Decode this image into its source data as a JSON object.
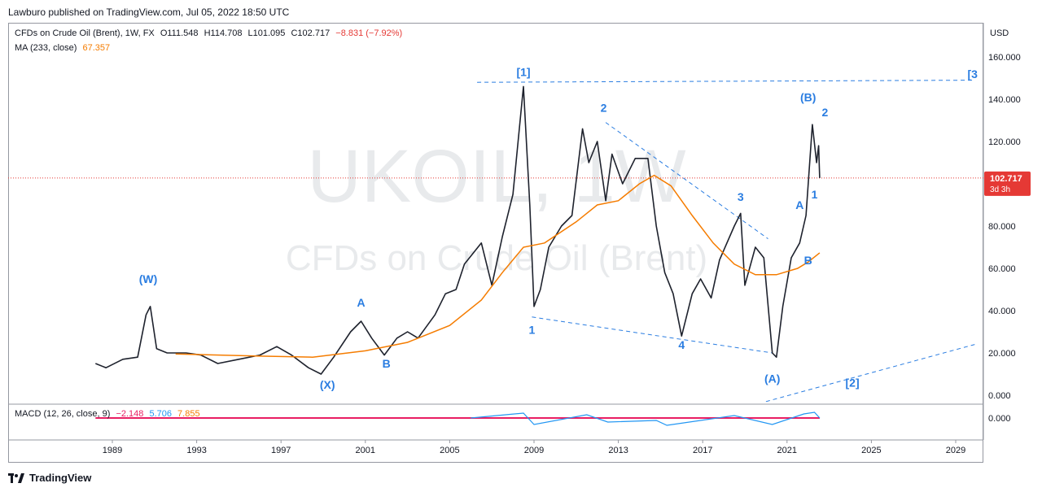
{
  "header": {
    "publisher": "Lawburo published on TradingView.com, Jul 05, 2022 18:50 UTC"
  },
  "legend": {
    "symbol": "CFDs on Crude Oil (Brent), 1W, FX",
    "open": "O111.548",
    "high": "H114.708",
    "low": "L101.095",
    "close": "C102.717",
    "change": "−8.831 (−7.92%)",
    "ma_label": "MA (233, close)",
    "ma_value": "67.357",
    "macd_label": "MACD (12, 26, close, 9)",
    "macd_hist": "−2.148",
    "macd_line": "5.706",
    "macd_signal": "7.855"
  },
  "watermark": {
    "ticker": "UKOIL, 1W",
    "name": "CFDs on Crude Oil (Brent)"
  },
  "price_badge": {
    "value": "102.717",
    "countdown": "3d 3h"
  },
  "footer": {
    "brand": "TradingView"
  },
  "colors": {
    "wave_label": "#2a7de1",
    "ma": "#f57c00",
    "price_line": "#e53935",
    "candle": "#1e222d"
  },
  "chart_data": {
    "type": "line",
    "currency": "USD",
    "y_ticks": [
      "160.000",
      "140.000",
      "120.000",
      "100.000",
      "80.000",
      "60.000",
      "40.000",
      "20.000",
      "0.000"
    ],
    "ylim": [
      0,
      160
    ],
    "x_ticks": [
      "1989",
      "1993",
      "1997",
      "2001",
      "2005",
      "2009",
      "2013",
      "2017",
      "2021",
      "2025",
      "2029"
    ],
    "xlim": [
      1988.0,
      2030.0
    ],
    "macd_tick": "0.000",
    "series": [
      {
        "name": "price",
        "points": [
          [
            1988.2,
            15
          ],
          [
            1988.7,
            13
          ],
          [
            1989.5,
            17
          ],
          [
            1990.2,
            18
          ],
          [
            1990.6,
            38
          ],
          [
            1990.8,
            42
          ],
          [
            1991.1,
            22
          ],
          [
            1991.6,
            20
          ],
          [
            1992.5,
            20
          ],
          [
            1993.2,
            19
          ],
          [
            1994.0,
            15
          ],
          [
            1995.0,
            17
          ],
          [
            1996.0,
            19
          ],
          [
            1996.8,
            23
          ],
          [
            1997.5,
            19
          ],
          [
            1998.3,
            13
          ],
          [
            1998.9,
            10
          ],
          [
            1999.5,
            18
          ],
          [
            2000.3,
            30
          ],
          [
            2000.8,
            35
          ],
          [
            2001.3,
            27
          ],
          [
            2001.9,
            19
          ],
          [
            2002.5,
            27
          ],
          [
            2003.0,
            30
          ],
          [
            2003.5,
            27
          ],
          [
            2004.3,
            38
          ],
          [
            2004.8,
            48
          ],
          [
            2005.3,
            50
          ],
          [
            2005.7,
            62
          ],
          [
            2006.5,
            72
          ],
          [
            2007.0,
            52
          ],
          [
            2007.5,
            75
          ],
          [
            2008.0,
            95
          ],
          [
            2008.5,
            146
          ],
          [
            2008.8,
            90
          ],
          [
            2009.0,
            42
          ],
          [
            2009.3,
            50
          ],
          [
            2009.7,
            70
          ],
          [
            2010.3,
            80
          ],
          [
            2010.8,
            85
          ],
          [
            2011.3,
            126
          ],
          [
            2011.6,
            110
          ],
          [
            2012.0,
            120
          ],
          [
            2012.4,
            92
          ],
          [
            2012.7,
            114
          ],
          [
            2013.2,
            100
          ],
          [
            2013.8,
            112
          ],
          [
            2014.4,
            112
          ],
          [
            2014.8,
            80
          ],
          [
            2015.2,
            58
          ],
          [
            2015.6,
            48
          ],
          [
            2016.0,
            28
          ],
          [
            2016.5,
            48
          ],
          [
            2016.9,
            55
          ],
          [
            2017.4,
            46
          ],
          [
            2017.8,
            64
          ],
          [
            2018.5,
            80
          ],
          [
            2018.8,
            86
          ],
          [
            2019.0,
            52
          ],
          [
            2019.5,
            70
          ],
          [
            2019.9,
            65
          ],
          [
            2020.3,
            20
          ],
          [
            2020.5,
            18
          ],
          [
            2020.8,
            42
          ],
          [
            2021.2,
            65
          ],
          [
            2021.6,
            72
          ],
          [
            2021.9,
            85
          ],
          [
            2022.2,
            128
          ],
          [
            2022.4,
            110
          ],
          [
            2022.5,
            118
          ],
          [
            2022.55,
            102.717
          ]
        ]
      },
      {
        "name": "MA (233, close)",
        "points": [
          [
            1992.0,
            19.5
          ],
          [
            1996.0,
            18.5
          ],
          [
            1998.5,
            18
          ],
          [
            2001.0,
            21
          ],
          [
            2003.0,
            25
          ],
          [
            2005.0,
            33
          ],
          [
            2006.5,
            45
          ],
          [
            2007.5,
            58
          ],
          [
            2008.5,
            70
          ],
          [
            2009.5,
            72
          ],
          [
            2011.0,
            82
          ],
          [
            2012.0,
            90
          ],
          [
            2013.0,
            92
          ],
          [
            2014.0,
            100
          ],
          [
            2014.7,
            104
          ],
          [
            2015.5,
            99
          ],
          [
            2016.5,
            85
          ],
          [
            2017.5,
            72
          ],
          [
            2018.5,
            62
          ],
          [
            2019.5,
            57
          ],
          [
            2020.5,
            57
          ],
          [
            2021.5,
            60
          ],
          [
            2022.0,
            63
          ],
          [
            2022.55,
            67.357
          ]
        ]
      }
    ],
    "annotations": [
      {
        "text": "(W)",
        "x": 1990.7,
        "y": 53
      },
      {
        "text": "(X)",
        "x": 1999.2,
        "y": 3
      },
      {
        "text": "A",
        "x": 2000.8,
        "y": 42
      },
      {
        "text": "B",
        "x": 2002.0,
        "y": 13
      },
      {
        "text": "[1]",
        "x": 2008.5,
        "y": 151
      },
      {
        "text": "1",
        "x": 2008.9,
        "y": 29
      },
      {
        "text": "2",
        "x": 2012.3,
        "y": 134
      },
      {
        "text": "4",
        "x": 2016.0,
        "y": 22
      },
      {
        "text": "3",
        "x": 2018.8,
        "y": 92
      },
      {
        "text": "(A)",
        "x": 2020.3,
        "y": 6
      },
      {
        "text": "A",
        "x": 2021.6,
        "y": 88
      },
      {
        "text": "B",
        "x": 2022.0,
        "y": 62
      },
      {
        "text": "1",
        "x": 2022.3,
        "y": 93
      },
      {
        "text": "(B)",
        "x": 2022.0,
        "y": 139
      },
      {
        "text": "2",
        "x": 2022.8,
        "y": 132
      },
      {
        "text": "[2]",
        "x": 2024.1,
        "y": 4
      },
      {
        "text": "[3",
        "x": 2029.8,
        "y": 150
      }
    ],
    "trendlines": [
      {
        "from": [
          2006.3,
          148
        ],
        "to": [
          2029.9,
          149
        ]
      },
      {
        "from": [
          2008.9,
          37
        ],
        "to": [
          2020.3,
          20
        ]
      },
      {
        "from": [
          2012.4,
          129
        ],
        "to": [
          2020.1,
          74
        ]
      },
      {
        "from": [
          2020.0,
          -3
        ],
        "to": [
          2029.9,
          24
        ]
      }
    ]
  }
}
